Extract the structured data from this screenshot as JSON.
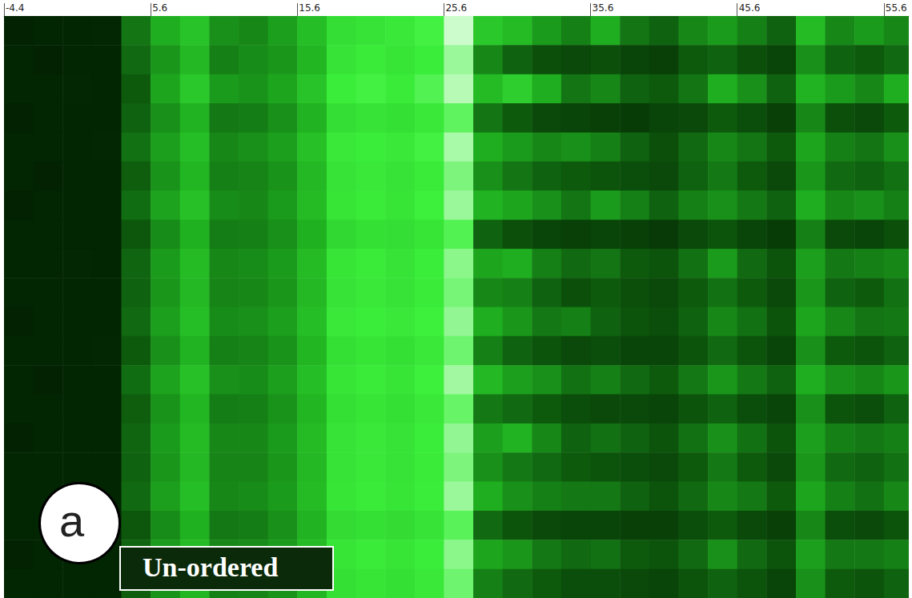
{
  "chart_data": {
    "type": "heatmap",
    "xlim": [
      -4.4,
      57.3
    ],
    "xticks": [
      -4.4,
      5.6,
      15.6,
      25.6,
      35.6,
      45.6,
      55.6
    ],
    "tick_labels": "x",
    "bins": [
      -4.4,
      -2.4,
      -0.4,
      1.6,
      3.6,
      5.6,
      7.6,
      9.6,
      11.6,
      13.6,
      15.6,
      17.6,
      19.6,
      21.6,
      23.6,
      25.6,
      27.6,
      29.6,
      31.6,
      33.6,
      35.6,
      37.6,
      39.6,
      41.6,
      43.6,
      45.6,
      47.6,
      49.6,
      51.6,
      53.6,
      55.6,
      57.6
    ],
    "color_range": [
      0,
      100
    ],
    "cells": [
      [
        4,
        5,
        5,
        6,
        35,
        50,
        58,
        42,
        40,
        46,
        56,
        68,
        70,
        72,
        76,
        95,
        60,
        55,
        45,
        38,
        50,
        35,
        30,
        40,
        45,
        38,
        30,
        55,
        40,
        45,
        40
      ],
      [
        5,
        4,
        5,
        5,
        32,
        44,
        54,
        38,
        41,
        44,
        53,
        70,
        73,
        71,
        74,
        88,
        40,
        30,
        25,
        22,
        25,
        20,
        18,
        28,
        30,
        25,
        20,
        42,
        30,
        28,
        32
      ],
      [
        5,
        5,
        6,
        5,
        28,
        48,
        60,
        45,
        43,
        48,
        58,
        74,
        76,
        73,
        78,
        92,
        55,
        62,
        50,
        35,
        40,
        30,
        28,
        35,
        50,
        42,
        30,
        52,
        45,
        40,
        50
      ],
      [
        4,
        5,
        5,
        5,
        30,
        42,
        52,
        36,
        37,
        42,
        52,
        68,
        70,
        69,
        72,
        80,
        35,
        28,
        22,
        20,
        18,
        16,
        20,
        22,
        28,
        24,
        18,
        40,
        25,
        22,
        28
      ],
      [
        5,
        5,
        5,
        6,
        34,
        46,
        56,
        40,
        42,
        46,
        57,
        72,
        74,
        72,
        76,
        90,
        50,
        45,
        40,
        42,
        38,
        30,
        25,
        32,
        40,
        35,
        28,
        48,
        38,
        35,
        42
      ],
      [
        5,
        4,
        5,
        5,
        29,
        43,
        53,
        38,
        39,
        43,
        54,
        70,
        72,
        70,
        73,
        84,
        42,
        35,
        30,
        28,
        26,
        24,
        22,
        30,
        36,
        28,
        22,
        44,
        32,
        30,
        34
      ],
      [
        4,
        5,
        5,
        5,
        33,
        47,
        57,
        41,
        40,
        45,
        55,
        71,
        73,
        71,
        75,
        88,
        52,
        48,
        42,
        35,
        45,
        38,
        30,
        38,
        42,
        36,
        30,
        50,
        40,
        42,
        38
      ],
      [
        5,
        5,
        5,
        5,
        27,
        41,
        51,
        37,
        38,
        42,
        51,
        66,
        69,
        68,
        71,
        78,
        30,
        25,
        20,
        18,
        20,
        18,
        15,
        22,
        26,
        20,
        16,
        38,
        22,
        20,
        25
      ],
      [
        5,
        5,
        6,
        5,
        31,
        45,
        55,
        40,
        41,
        45,
        55,
        71,
        73,
        70,
        74,
        86,
        48,
        50,
        38,
        32,
        35,
        28,
        26,
        34,
        45,
        32,
        26,
        46,
        36,
        38,
        40
      ],
      [
        5,
        5,
        5,
        5,
        30,
        44,
        54,
        39,
        40,
        44,
        54,
        70,
        72,
        70,
        73,
        83,
        40,
        38,
        30,
        25,
        28,
        25,
        22,
        28,
        34,
        28,
        22,
        44,
        30,
        28,
        34
      ],
      [
        4,
        5,
        5,
        5,
        32,
        46,
        56,
        41,
        42,
        46,
        56,
        72,
        74,
        72,
        75,
        87,
        50,
        44,
        36,
        38,
        30,
        26,
        24,
        30,
        40,
        34,
        26,
        48,
        40,
        35,
        36
      ],
      [
        5,
        5,
        5,
        6,
        28,
        42,
        52,
        38,
        39,
        43,
        53,
        69,
        71,
        69,
        72,
        82,
        38,
        30,
        26,
        22,
        24,
        20,
        20,
        26,
        32,
        26,
        20,
        42,
        28,
        26,
        30
      ],
      [
        5,
        4,
        5,
        5,
        33,
        47,
        57,
        42,
        41,
        46,
        56,
        71,
        73,
        71,
        75,
        89,
        54,
        46,
        42,
        34,
        38,
        32,
        28,
        36,
        44,
        36,
        30,
        50,
        42,
        40,
        44
      ],
      [
        5,
        5,
        5,
        5,
        29,
        43,
        53,
        37,
        38,
        43,
        53,
        69,
        71,
        69,
        72,
        81,
        36,
        32,
        28,
        24,
        22,
        22,
        20,
        26,
        30,
        24,
        20,
        42,
        26,
        24,
        30
      ],
      [
        4,
        5,
        5,
        5,
        31,
        45,
        55,
        40,
        40,
        45,
        55,
        70,
        72,
        70,
        74,
        87,
        46,
        52,
        40,
        30,
        34,
        30,
        26,
        34,
        42,
        34,
        26,
        46,
        38,
        36,
        38
      ],
      [
        5,
        5,
        5,
        5,
        30,
        44,
        54,
        39,
        39,
        44,
        54,
        70,
        72,
        70,
        73,
        84,
        42,
        36,
        32,
        28,
        26,
        24,
        22,
        28,
        36,
        28,
        22,
        44,
        32,
        30,
        34
      ],
      [
        5,
        5,
        5,
        5,
        32,
        46,
        56,
        40,
        41,
        45,
        55,
        71,
        73,
        71,
        74,
        88,
        50,
        42,
        38,
        36,
        36,
        30,
        26,
        32,
        40,
        36,
        28,
        48,
        38,
        34,
        40
      ],
      [
        5,
        5,
        5,
        5,
        27,
        41,
        51,
        36,
        37,
        42,
        52,
        67,
        69,
        67,
        70,
        79,
        32,
        26,
        22,
        20,
        20,
        18,
        18,
        24,
        28,
        22,
        18,
        40,
        24,
        22,
        26
      ],
      [
        4,
        5,
        5,
        5,
        31,
        45,
        55,
        40,
        41,
        45,
        55,
        71,
        73,
        71,
        74,
        86,
        48,
        44,
        36,
        32,
        34,
        28,
        26,
        32,
        42,
        32,
        26,
        46,
        36,
        36,
        38
      ],
      [
        5,
        5,
        5,
        5,
        29,
        43,
        53,
        38,
        39,
        43,
        53,
        69,
        71,
        69,
        72,
        82,
        38,
        32,
        28,
        24,
        24,
        22,
        20,
        26,
        30,
        26,
        20,
        42,
        28,
        26,
        30
      ]
    ],
    "annotations": [
      "a",
      "Un-ordered"
    ]
  }
}
